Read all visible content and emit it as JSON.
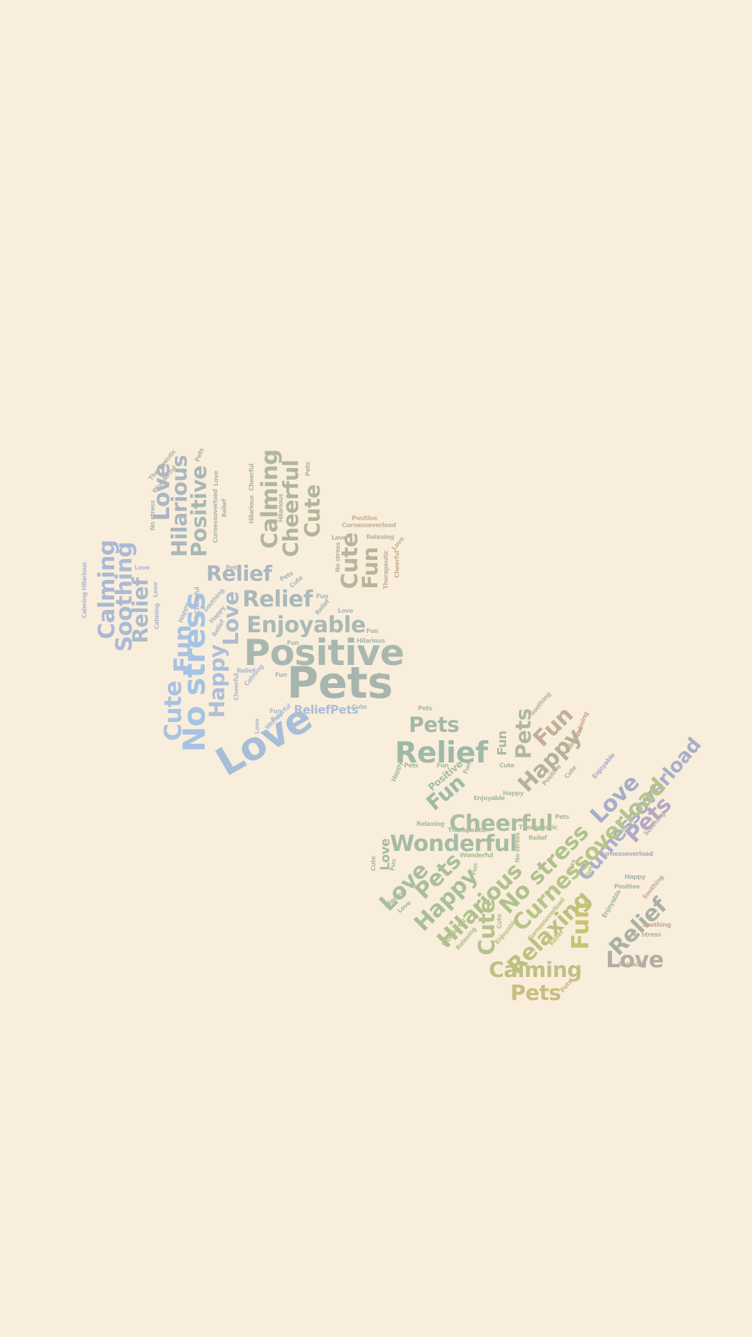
{
  "background": "#f9eedb",
  "paws": [
    {
      "name": "paw-top-left",
      "words": [
        {
          "text": "Pets",
          "color": "#a7b5ae"
        },
        {
          "text": "Positive",
          "color": "#a8b8b0"
        },
        {
          "text": "Love",
          "color": "#a7bed8"
        },
        {
          "text": "No stress",
          "color": "#a5c3e3"
        },
        {
          "text": "Cute",
          "color": "#a9c2e0"
        },
        {
          "text": "Fun",
          "color": "#a8c2e1"
        },
        {
          "text": "Happy",
          "color": "#adbfd9"
        },
        {
          "text": "Love",
          "color": "#acbbcf"
        },
        {
          "text": "Enjoyable",
          "color": "#aab9b4"
        },
        {
          "text": "Relief",
          "color": "#a9b8bb"
        },
        {
          "text": "Relief",
          "color": "#aab6c2"
        },
        {
          "text": "ReliefPets",
          "color": "#a9bed9"
        },
        {
          "text": "Calming",
          "color": "#aab9d6"
        },
        {
          "text": "Soothing",
          "color": "#abbbd6"
        },
        {
          "text": "Relief",
          "color": "#abbacc"
        },
        {
          "text": "Love",
          "color": "#aab7c3"
        },
        {
          "text": "Hilarious",
          "color": "#a9b7be"
        },
        {
          "text": "Positive",
          "color": "#a9b7b4"
        },
        {
          "text": "Calming",
          "color": "#b1b69e"
        },
        {
          "text": "Cheerful",
          "color": "#b0b59e"
        },
        {
          "text": "Cute",
          "color": "#b3b49b"
        },
        {
          "text": "Cute",
          "color": "#bcb39c"
        },
        {
          "text": "Fun",
          "color": "#bcb29a"
        },
        {
          "text": "Therapeutic",
          "color": "#b2b6a9"
        },
        {
          "text": "Wonderful",
          "color": "#b1b6ad"
        },
        {
          "text": "Pets",
          "color": "#b1b6aa"
        },
        {
          "text": "No stress",
          "color": "#b2b6b0"
        },
        {
          "text": "Love",
          "color": "#b1b7b6"
        },
        {
          "text": "Relief",
          "color": "#b1b6b0"
        },
        {
          "text": "Curnessoverload",
          "color": "#b1b6b1"
        },
        {
          "text": "Cheerful",
          "color": "#b1b7a7"
        },
        {
          "text": "Hilarious",
          "color": "#b0b6a9"
        },
        {
          "text": "Hilarious",
          "color": "#b0b7ad"
        },
        {
          "text": "Pets",
          "color": "#b3b4a0"
        },
        {
          "text": "Positive",
          "color": "#c8b78d"
        },
        {
          "text": "Curnessoverload",
          "color": "#c0b69a"
        },
        {
          "text": "Love",
          "color": "#b7b59c"
        },
        {
          "text": "Relaxing",
          "color": "#c1b39b"
        },
        {
          "text": "Love",
          "color": "#c9b391"
        },
        {
          "text": "No stress",
          "color": "#b7b4a3"
        },
        {
          "text": "Therapeutic",
          "color": "#c1b29e"
        },
        {
          "text": "Cheerful",
          "color": "#c9b295"
        },
        {
          "text": "Love",
          "color": "#b1bcd6"
        },
        {
          "text": "Hilarious",
          "color": "#acbbd5"
        },
        {
          "text": "Calming",
          "color": "#abbad4"
        },
        {
          "text": "Love",
          "color": "#acbbd2"
        },
        {
          "text": "Calming",
          "color": "#adbbd2"
        },
        {
          "text": "Pets",
          "color": "#adbac6"
        },
        {
          "text": "Pets",
          "color": "#aab8bf"
        },
        {
          "text": "Cute",
          "color": "#aab8bc"
        },
        {
          "text": "Happy",
          "color": "#acbccd"
        },
        {
          "text": "Cheerful",
          "color": "#acbbcb"
        },
        {
          "text": "Soothing",
          "color": "#acbbc9"
        },
        {
          "text": "Happy",
          "color": "#acbbc8"
        },
        {
          "text": "Relief",
          "color": "#adbac6"
        },
        {
          "text": "Fun",
          "color": "#aab8b9"
        },
        {
          "text": "Relief",
          "color": "#abb7b8"
        },
        {
          "text": "Love",
          "color": "#acb8b8"
        },
        {
          "text": "Fun",
          "color": "#aab7b8"
        },
        {
          "text": "Fun",
          "color": "#a9b8b6"
        },
        {
          "text": "Hilarious",
          "color": "#acb9b6"
        },
        {
          "text": "Fun",
          "color": "#a9b8b3"
        },
        {
          "text": "Fun",
          "color": "#a9b8b0"
        },
        {
          "text": "Relief",
          "color": "#acbcca"
        },
        {
          "text": "Cheerful",
          "color": "#adbdcb"
        },
        {
          "text": "Calming",
          "color": "#acbdcd"
        },
        {
          "text": "Fun",
          "color": "#abbcc8"
        },
        {
          "text": "Fun",
          "color": "#a9bbcd"
        },
        {
          "text": "Love",
          "color": "#acbed3"
        },
        {
          "text": "Wonderful",
          "color": "#acbdd2"
        },
        {
          "text": "Cute",
          "color": "#aabdcc"
        }
      ]
    },
    {
      "name": "paw-bottom-right",
      "words": [
        {
          "text": "Pets",
          "color": "#a3b9a7"
        },
        {
          "text": "Relief",
          "color": "#9eb9a9"
        },
        {
          "text": "Pets",
          "color": "#a9baa6"
        },
        {
          "text": "Fun",
          "color": "#a0baa6"
        },
        {
          "text": "Positive",
          "color": "#a7bba4"
        },
        {
          "text": "Happy",
          "color": "#a9bba5"
        },
        {
          "text": "Pets",
          "color": "#a8bba5"
        },
        {
          "text": "Fun",
          "color": "#a9bba6"
        },
        {
          "text": "Fun",
          "color": "#a7bba6"
        },
        {
          "text": "Pets",
          "color": "#b1b6a4"
        },
        {
          "text": "Fun",
          "color": "#c3ad9b"
        },
        {
          "text": "Happy",
          "color": "#b5b29c"
        },
        {
          "text": "Fun",
          "color": "#acb7a4"
        },
        {
          "text": "Soothing",
          "color": "#bdb29b"
        },
        {
          "text": "Calming",
          "color": "#cfa693"
        },
        {
          "text": "Hilarious",
          "color": "#c0ad98"
        },
        {
          "text": "Cute",
          "color": "#b2b4a1"
        },
        {
          "text": "Positive",
          "color": "#b7b39c"
        },
        {
          "text": "Cute",
          "color": "#bbae9c"
        },
        {
          "text": "Love",
          "color": "#a4aec6"
        },
        {
          "text": "Pets",
          "color": "#b4a8c8"
        },
        {
          "text": "Enjoyable",
          "color": "#a8adc2"
        },
        {
          "text": "Curnessoverload",
          "color": "#aaaecb"
        },
        {
          "text": "Soothing",
          "color": "#c0acb2"
        },
        {
          "text": "Curnessoverload",
          "color": "#aab1bc"
        },
        {
          "text": "Therapeutic",
          "color": "#a8b5b4"
        },
        {
          "text": "Cheerful",
          "color": "#aabda1"
        },
        {
          "text": "Enjoyable",
          "color": "#abbca0"
        },
        {
          "text": "Happy",
          "color": "#acbd9c"
        },
        {
          "text": "Pets",
          "color": "#adbc9c"
        },
        {
          "text": "Relaxing",
          "color": "#aabba0"
        },
        {
          "text": "Therapeutic",
          "color": "#acbd99"
        },
        {
          "text": "Wonderful",
          "color": "#a6bba5"
        },
        {
          "text": "Relief",
          "color": "#acbe97"
        },
        {
          "text": "No stress",
          "color": "#aebe96"
        },
        {
          "text": "Wonderful",
          "color": "#abbe98"
        },
        {
          "text": "Love",
          "color": "#a7bba3"
        },
        {
          "text": "Cute",
          "color": "#a8bba3"
        },
        {
          "text": "Fun",
          "color": "#a9bba1"
        },
        {
          "text": "Love",
          "color": "#a9bda1"
        },
        {
          "text": "Pets",
          "color": "#abbe9c"
        },
        {
          "text": "Happy",
          "color": "#abbe9b"
        },
        {
          "text": "Fun",
          "color": "#abbd9f"
        },
        {
          "text": "Happy",
          "color": "#a9bba3"
        },
        {
          "text": "Love",
          "color": "#aabca0"
        },
        {
          "text": "Hilarious",
          "color": "#afc190"
        },
        {
          "text": "No stress",
          "color": "#b0c18e"
        },
        {
          "text": "Curnessoverload",
          "color": "#b7c48b"
        },
        {
          "text": "Cute",
          "color": "#b5c28b"
        },
        {
          "text": "Relaxing",
          "color": "#bdc180"
        },
        {
          "text": "Fun",
          "color": "#c7c474"
        },
        {
          "text": "Calming",
          "color": "#c0bf85"
        },
        {
          "text": "Pets",
          "color": "#c9bd80"
        },
        {
          "text": "Pets",
          "color": "#cbb883"
        },
        {
          "text": "Wonderful",
          "color": "#b2c091"
        },
        {
          "text": "Relaxing",
          "color": "#b5c08f"
        },
        {
          "text": "Cute",
          "color": "#b8c18a"
        },
        {
          "text": "Enjoyable",
          "color": "#bac18a"
        },
        {
          "text": "Curnessoverload",
          "color": "#bfbf82"
        },
        {
          "text": "Relief",
          "color": "#c6c17d"
        },
        {
          "text": "Pets",
          "color": "#b9c086"
        },
        {
          "text": "Fun",
          "color": "#b4c18c"
        },
        {
          "text": "Happy",
          "color": "#abb5b0"
        },
        {
          "text": "Positive",
          "color": "#acb5ac"
        },
        {
          "text": "Enjoyable",
          "color": "#abb6a6"
        },
        {
          "text": "Relief",
          "color": "#a9b1a7"
        },
        {
          "text": "Soothing",
          "color": "#c1ae99"
        },
        {
          "text": "Soothing",
          "color": "#c0af97"
        },
        {
          "text": "No stress",
          "color": "#b8b0a2"
        },
        {
          "text": "Love",
          "color": "#b2aea6"
        },
        {
          "text": "Relaxing",
          "color": "#c5a996"
        }
      ]
    }
  ]
}
